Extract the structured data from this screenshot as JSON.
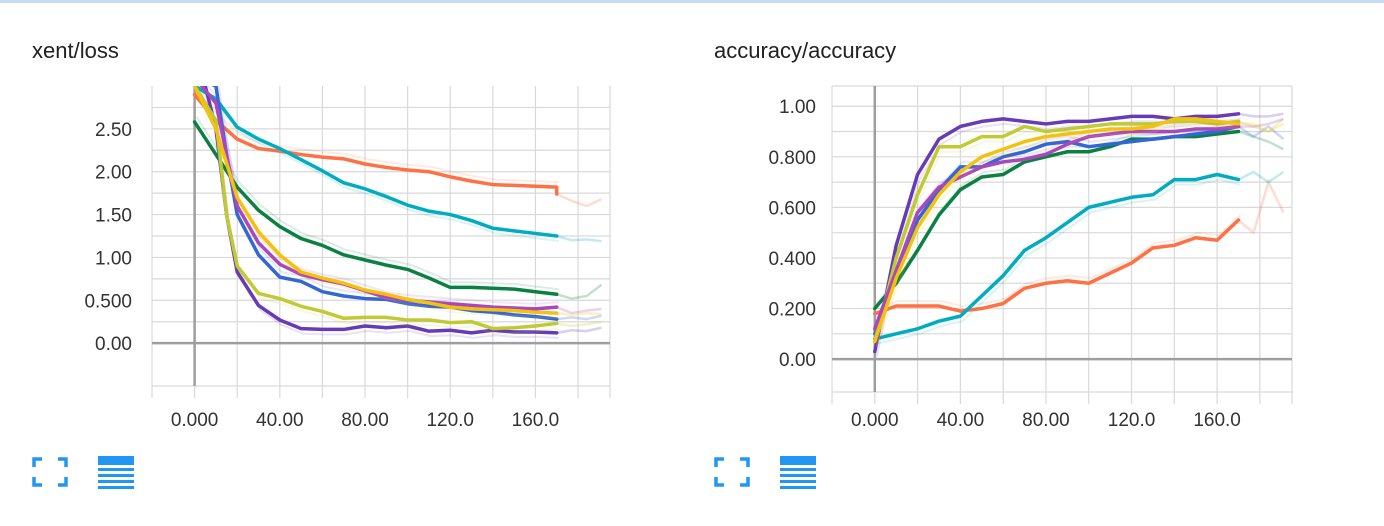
{
  "colors": {
    "axis": "#9e9e9e",
    "grid": "#d9d9d9",
    "icon": "#2196f3",
    "series": [
      "#ff7043",
      "#00acc1",
      "#0b8043",
      "#673ab7",
      "#3367d6",
      "#c0ca33",
      "#ab47bc",
      "#f4c20d",
      "#fbc770"
    ]
  },
  "icons": {
    "expand": "fullscreen-corners-icon",
    "toggle": "list-lines-icon"
  },
  "chart_data": [
    {
      "type": "line",
      "title": "xent/loss",
      "xlim": [
        -20,
        195
      ],
      "ylim": [
        -0.5,
        3.0
      ],
      "xticks": [
        0,
        40,
        80,
        120,
        160
      ],
      "xtick_labels": [
        "0.000",
        "40.00",
        "80.00",
        "120.0",
        "160.0"
      ],
      "xgrid": [
        -20,
        0,
        20,
        40,
        60,
        80,
        100,
        120,
        140,
        160,
        180,
        195
      ],
      "yticks": [
        0,
        0.5,
        1.0,
        1.5,
        2.0,
        2.5
      ],
      "ytick_labels": [
        "0.00",
        "0.500",
        "1.00",
        "1.50",
        "2.00",
        "2.50"
      ],
      "ygrid": [
        -0.5,
        0,
        0.25,
        0.5,
        0.75,
        1.0,
        1.25,
        1.5,
        1.75,
        2.0,
        2.25,
        2.5,
        2.75
      ],
      "grid": true,
      "series": [
        {
          "color": "#ff7043",
          "x": [
            0,
            10,
            20,
            30,
            40,
            50,
            60,
            70,
            80,
            90,
            100,
            110,
            120,
            130,
            140,
            150,
            160,
            170
          ],
          "y": [
            2.9,
            2.6,
            2.38,
            2.27,
            2.24,
            2.2,
            2.17,
            2.15,
            2.09,
            2.05,
            2.02,
            2.0,
            1.94,
            1.89,
            1.85,
            1.84,
            1.83,
            1.82
          ],
          "y_tail": [
            1.74
          ],
          "smooth": [
            1.66,
            1.6,
            1.68
          ]
        },
        {
          "color": "#00acc1",
          "x": [
            0,
            10,
            20,
            30,
            40,
            50,
            60,
            70,
            80,
            90,
            100,
            110,
            120,
            130,
            140,
            150,
            160,
            170
          ],
          "y": [
            3.0,
            2.85,
            2.52,
            2.38,
            2.27,
            2.14,
            2.01,
            1.87,
            1.8,
            1.71,
            1.61,
            1.54,
            1.5,
            1.43,
            1.34,
            1.31,
            1.28,
            1.25
          ],
          "smooth": [
            1.2,
            1.21,
            1.19
          ]
        },
        {
          "color": "#0b8043",
          "x": [
            0,
            10,
            20,
            30,
            40,
            50,
            60,
            70,
            80,
            90,
            100,
            110,
            120,
            130,
            140,
            150,
            160,
            170
          ],
          "y": [
            2.58,
            2.2,
            1.82,
            1.55,
            1.36,
            1.22,
            1.14,
            1.03,
            0.97,
            0.91,
            0.86,
            0.76,
            0.65,
            0.65,
            0.64,
            0.63,
            0.6,
            0.57
          ],
          "smooth": [
            0.52,
            0.55,
            0.68
          ]
        },
        {
          "color": "#673ab7",
          "x": [
            0,
            5,
            10,
            15,
            20,
            30,
            40,
            50,
            60,
            70,
            80,
            90,
            100,
            110,
            120,
            130,
            140,
            150,
            160,
            170
          ],
          "y": [
            3.1,
            3.0,
            2.5,
            1.5,
            0.83,
            0.44,
            0.27,
            0.17,
            0.16,
            0.16,
            0.2,
            0.18,
            0.2,
            0.14,
            0.15,
            0.12,
            0.15,
            0.13,
            0.13,
            0.12
          ],
          "smooth": [
            0.15,
            0.14,
            0.18
          ]
        },
        {
          "color": "#3367d6",
          "x": [
            0,
            10,
            15,
            20,
            30,
            40,
            50,
            60,
            70,
            80,
            90,
            100,
            110,
            120,
            130,
            140,
            150,
            160,
            170
          ],
          "y": [
            3.1,
            3.0,
            2.2,
            1.5,
            1.03,
            0.77,
            0.72,
            0.6,
            0.55,
            0.52,
            0.51,
            0.46,
            0.43,
            0.42,
            0.38,
            0.36,
            0.33,
            0.31,
            0.28
          ],
          "smooth": [
            0.3,
            0.28,
            0.32
          ]
        },
        {
          "color": "#c0ca33",
          "x": [
            0,
            10,
            15,
            20,
            30,
            40,
            50,
            60,
            70,
            80,
            90,
            100,
            110,
            120,
            130,
            140,
            150,
            160,
            170
          ],
          "y": [
            3.0,
            2.6,
            1.5,
            0.9,
            0.58,
            0.52,
            0.43,
            0.37,
            0.29,
            0.3,
            0.3,
            0.27,
            0.27,
            0.24,
            0.25,
            0.17,
            0.18,
            0.2,
            0.23
          ],
          "smooth": [
            0.2,
            0.22,
            0.25
          ]
        },
        {
          "color": "#ab47bc",
          "x": [
            0,
            10,
            20,
            30,
            40,
            50,
            60,
            70,
            80,
            90,
            100,
            110,
            120,
            130,
            140,
            150,
            160,
            170
          ],
          "y": [
            3.1,
            2.8,
            1.6,
            1.17,
            0.92,
            0.8,
            0.74,
            0.69,
            0.61,
            0.53,
            0.5,
            0.48,
            0.46,
            0.44,
            0.42,
            0.41,
            0.4,
            0.42
          ],
          "smooth": [
            0.35,
            0.38,
            0.4
          ]
        },
        {
          "color": "#f4c20d",
          "x": [
            0,
            10,
            20,
            30,
            40,
            50,
            60,
            70,
            80,
            90,
            100,
            110,
            120,
            130,
            140,
            150,
            160,
            170
          ],
          "y": [
            3.0,
            2.5,
            1.7,
            1.3,
            1.03,
            0.83,
            0.76,
            0.7,
            0.62,
            0.57,
            0.51,
            0.47,
            0.42,
            0.4,
            0.39,
            0.38,
            0.36,
            0.35
          ],
          "smooth": [
            0.33,
            0.35,
            0.34
          ]
        }
      ]
    },
    {
      "type": "line",
      "title": "accuracy/accuracy",
      "xlim": [
        -20,
        195
      ],
      "ylim": [
        -0.13,
        1.08
      ],
      "xticks": [
        0,
        40,
        80,
        120,
        160
      ],
      "xtick_labels": [
        "0.000",
        "40.00",
        "80.00",
        "120.0",
        "160.0"
      ],
      "xgrid": [
        -20,
        0,
        20,
        40,
        60,
        80,
        100,
        120,
        140,
        160,
        180,
        195
      ],
      "yticks": [
        0,
        0.2,
        0.4,
        0.6,
        0.8,
        1.0
      ],
      "ytick_labels": [
        "0.00",
        "0.200",
        "0.400",
        "0.600",
        "0.800",
        "1.00"
      ],
      "ygrid": [
        -0.13,
        0,
        0.1,
        0.2,
        0.3,
        0.4,
        0.5,
        0.6,
        0.7,
        0.8,
        0.9,
        1.0,
        1.08
      ],
      "grid": true,
      "series": [
        {
          "color": "#ff7043",
          "x": [
            0,
            10,
            20,
            30,
            40,
            50,
            60,
            70,
            80,
            90,
            100,
            110,
            120,
            130,
            140,
            150,
            160,
            170
          ],
          "y": [
            0.18,
            0.21,
            0.21,
            0.21,
            0.19,
            0.2,
            0.22,
            0.28,
            0.3,
            0.31,
            0.3,
            0.34,
            0.38,
            0.44,
            0.45,
            0.48,
            0.47,
            0.55
          ],
          "smooth": [
            0.5,
            0.7,
            0.58
          ]
        },
        {
          "color": "#00acc1",
          "x": [
            0,
            10,
            20,
            30,
            40,
            50,
            60,
            70,
            80,
            90,
            100,
            110,
            120,
            130,
            140,
            150,
            160,
            170
          ],
          "y": [
            0.08,
            0.1,
            0.12,
            0.15,
            0.17,
            0.25,
            0.33,
            0.43,
            0.48,
            0.54,
            0.6,
            0.62,
            0.64,
            0.65,
            0.71,
            0.71,
            0.73,
            0.71
          ],
          "smooth": [
            0.74,
            0.7,
            0.74
          ]
        },
        {
          "color": "#0b8043",
          "x": [
            0,
            10,
            20,
            30,
            40,
            50,
            60,
            70,
            80,
            90,
            100,
            110,
            120,
            130,
            140,
            150,
            160,
            170
          ],
          "y": [
            0.2,
            0.3,
            0.43,
            0.57,
            0.67,
            0.72,
            0.73,
            0.78,
            0.8,
            0.82,
            0.82,
            0.84,
            0.87,
            0.87,
            0.88,
            0.88,
            0.89,
            0.9
          ],
          "smooth": [
            0.88,
            0.86,
            0.83
          ]
        },
        {
          "color": "#673ab7",
          "x": [
            0,
            10,
            20,
            30,
            40,
            50,
            60,
            70,
            80,
            90,
            100,
            110,
            120,
            130,
            140,
            150,
            160,
            170
          ],
          "y": [
            0.03,
            0.45,
            0.73,
            0.87,
            0.92,
            0.94,
            0.95,
            0.94,
            0.93,
            0.94,
            0.94,
            0.95,
            0.96,
            0.96,
            0.95,
            0.96,
            0.96,
            0.97
          ],
          "smooth": [
            0.96,
            0.96,
            0.97
          ]
        },
        {
          "color": "#3367d6",
          "x": [
            0,
            10,
            20,
            30,
            40,
            50,
            60,
            70,
            80,
            90,
            100,
            110,
            120,
            130,
            140,
            150,
            160,
            170
          ],
          "y": [
            0.1,
            0.35,
            0.55,
            0.67,
            0.76,
            0.76,
            0.8,
            0.82,
            0.85,
            0.86,
            0.84,
            0.85,
            0.86,
            0.87,
            0.88,
            0.89,
            0.9,
            0.92
          ],
          "smooth": [
            0.88,
            0.92,
            0.87
          ]
        },
        {
          "color": "#c0ca33",
          "x": [
            0,
            10,
            20,
            30,
            40,
            50,
            60,
            70,
            80,
            90,
            100,
            110,
            120,
            130,
            140,
            150,
            160,
            170
          ],
          "y": [
            0.07,
            0.4,
            0.65,
            0.84,
            0.84,
            0.88,
            0.88,
            0.92,
            0.9,
            0.91,
            0.92,
            0.93,
            0.93,
            0.93,
            0.94,
            0.94,
            0.93,
            0.94
          ],
          "smooth": [
            0.92,
            0.9,
            0.95
          ]
        },
        {
          "color": "#ab47bc",
          "x": [
            0,
            10,
            20,
            30,
            40,
            50,
            60,
            70,
            80,
            90,
            100,
            110,
            120,
            130,
            140,
            150,
            160,
            170
          ],
          "y": [
            0.12,
            0.35,
            0.58,
            0.68,
            0.72,
            0.76,
            0.78,
            0.79,
            0.81,
            0.85,
            0.88,
            0.89,
            0.9,
            0.9,
            0.9,
            0.91,
            0.91,
            0.92
          ],
          "smooth": [
            0.92,
            0.93,
            0.95
          ]
        },
        {
          "color": "#f4c20d",
          "x": [
            0,
            10,
            20,
            30,
            40,
            50,
            60,
            70,
            80,
            90,
            100,
            110,
            120,
            130,
            140,
            150,
            160,
            170
          ],
          "y": [
            0.07,
            0.32,
            0.52,
            0.65,
            0.74,
            0.8,
            0.83,
            0.86,
            0.88,
            0.89,
            0.9,
            0.91,
            0.91,
            0.92,
            0.95,
            0.95,
            0.94,
            0.93
          ],
          "smooth": [
            0.93,
            0.9,
            0.93
          ]
        }
      ]
    }
  ]
}
